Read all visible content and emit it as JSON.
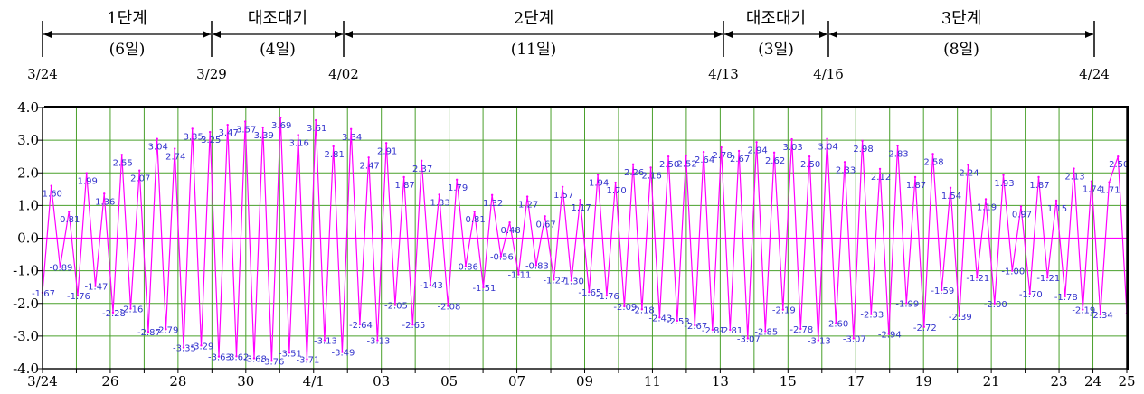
{
  "colors": {
    "series": "#ff00ff",
    "grid": "#4aa02c",
    "zero_line": "#ff00ff",
    "data_label": "#3333cc",
    "axis": "#000000"
  },
  "stages": {
    "boundaries": [
      "3/24",
      "3/29",
      "4/02",
      "4/13",
      "4/16",
      "4/24"
    ],
    "segments": [
      {
        "name": "1단계",
        "days": "(6일)"
      },
      {
        "name": "대조대기",
        "days": "(4일)"
      },
      {
        "name": "2단계",
        "days": "(11일)"
      },
      {
        "name": "대조대기",
        "days": "(3일)"
      },
      {
        "name": "3단계",
        "days": "(8일)"
      }
    ]
  },
  "chart_data": {
    "type": "line",
    "series": [
      {
        "values": [
          -1.67,
          1.6,
          -0.89,
          0.81,
          -1.76,
          1.99,
          -1.47,
          1.36,
          -2.28,
          2.55,
          -2.16,
          2.07,
          -2.87,
          3.04,
          -2.79,
          2.74,
          -3.35,
          3.35,
          -3.29,
          3.25,
          -3.63,
          3.47,
          -3.62,
          3.57,
          -3.68,
          3.39,
          -3.76,
          3.69,
          -3.51,
          3.16,
          -3.71,
          3.61,
          -3.13,
          2.81,
          -3.49,
          3.34,
          -2.64,
          2.47,
          -3.13,
          2.91,
          -2.05,
          1.87,
          -2.65,
          2.37,
          -1.43,
          1.33,
          -2.08,
          1.79,
          -0.86,
          0.81,
          -1.51,
          1.32,
          -0.56,
          0.48,
          -1.11,
          1.27,
          -0.83,
          0.67,
          -1.27,
          1.57,
          -1.3,
          1.17,
          -1.65,
          1.94,
          -1.76,
          1.7,
          -2.09,
          2.26,
          -2.18,
          2.16,
          -2.43,
          2.5,
          -2.53,
          2.52,
          -2.67,
          2.64,
          -2.81,
          2.78,
          -2.81,
          2.67,
          -3.07,
          2.94,
          -2.85,
          2.62,
          -2.19,
          3.03,
          -2.78,
          2.5,
          -3.13,
          3.04,
          -2.6,
          2.33,
          -3.07,
          2.98,
          -2.33,
          2.12,
          -2.94,
          2.83,
          -1.99,
          1.87,
          -2.72,
          2.58,
          -1.59,
          1.54,
          -2.39,
          2.24,
          -1.21,
          1.19,
          -2.0,
          1.93,
          -1.0,
          0.97,
          -1.7,
          1.87,
          -1.21,
          1.15,
          -1.78,
          2.13,
          -2.19,
          1.74,
          -2.34,
          1.71,
          2.5,
          -2.3
        ],
        "labels_shown": [
          "-1.67",
          "1.60",
          "-0.89",
          "0.81",
          "-1.76",
          "1.99",
          "-1.47",
          "1.36",
          "-2.28",
          "2.55",
          "-2.16",
          "2.07",
          "-2.87",
          "3.04",
          "-2.79",
          "2.74",
          "-3.35",
          "3.35",
          "-3.29",
          "3.25",
          "-3.63",
          "3.47",
          "-3.62",
          "3.57",
          "-3.68",
          "3.39",
          "-3.76",
          "3.69",
          "-3.51",
          "3.16",
          "-3.71",
          "3.61",
          "-3.13",
          "2.81",
          "-3.49",
          "3.34",
          "-2.64",
          "2.47",
          "-3.13",
          "2.91",
          "-2.05",
          "1.87",
          "-2.65",
          "2.37",
          "-1.43",
          "1.33",
          "-2.08",
          "1.79",
          "-0.86",
          "0.81",
          "-1.51",
          "1.32",
          "-0.56",
          "0.48",
          "-1.11",
          "1.27",
          "-0.83",
          "0.67",
          "-1.27",
          "1.57",
          "-1.30",
          "1.17",
          "-1.65",
          "1.94",
          "-1.76",
          "1.70",
          "-2.09",
          "2.26",
          "-2.18",
          "2.16",
          "-2.43",
          "2.50",
          "-2.53",
          "2.52",
          "-2.67",
          "2.64",
          "-2.81",
          "2.78",
          "-2.81",
          "2.67",
          "-3.07",
          "2.94",
          "-2.85",
          "2.62",
          "-2.19",
          "3.03",
          "-2.78",
          "2.50",
          "-3.13",
          "3.04",
          "-2.60",
          "2.33",
          "-3.07",
          "2.98",
          "-2.33",
          "2.12",
          "-2.94",
          "2.83",
          "-1.99",
          "1.87",
          "-2.72",
          "2.58",
          "-1.59",
          "1.54",
          "-2.39",
          "2.24",
          "-1.21",
          "1.19",
          "-2.00",
          "1.93",
          "-1.00",
          "0.97",
          "-1.70",
          "1.87",
          "-1.21",
          "1.15",
          "-1.78",
          "2.13",
          "-2.19",
          "1.74",
          "-2.34",
          "1.71",
          "2.50",
          ""
        ]
      }
    ],
    "x_start_day": 0,
    "x_end_day": 32,
    "x_tick_days": [
      0,
      2,
      4,
      6,
      8,
      10,
      12,
      14,
      16,
      18,
      20,
      22,
      24,
      26,
      28,
      30,
      31,
      32
    ],
    "x_tick_labels": [
      "3/24",
      "26",
      "28",
      "30",
      "4/1",
      "03",
      "05",
      "07",
      "09",
      "11",
      "13",
      "15",
      "17",
      "19",
      "21",
      "23",
      "24",
      "25"
    ],
    "y_ticks": [
      4.0,
      3.0,
      2.0,
      1.0,
      0.0,
      -1.0,
      -2.0,
      -3.0,
      -4.0
    ],
    "y_tick_labels": [
      "4.0",
      "3.0",
      "2.0",
      "1.0",
      "0.0",
      "-1.0",
      "-2.0",
      "-3.0",
      "-4.0"
    ],
    "ylim": [
      -4.0,
      4.0
    ],
    "grid": true
  }
}
